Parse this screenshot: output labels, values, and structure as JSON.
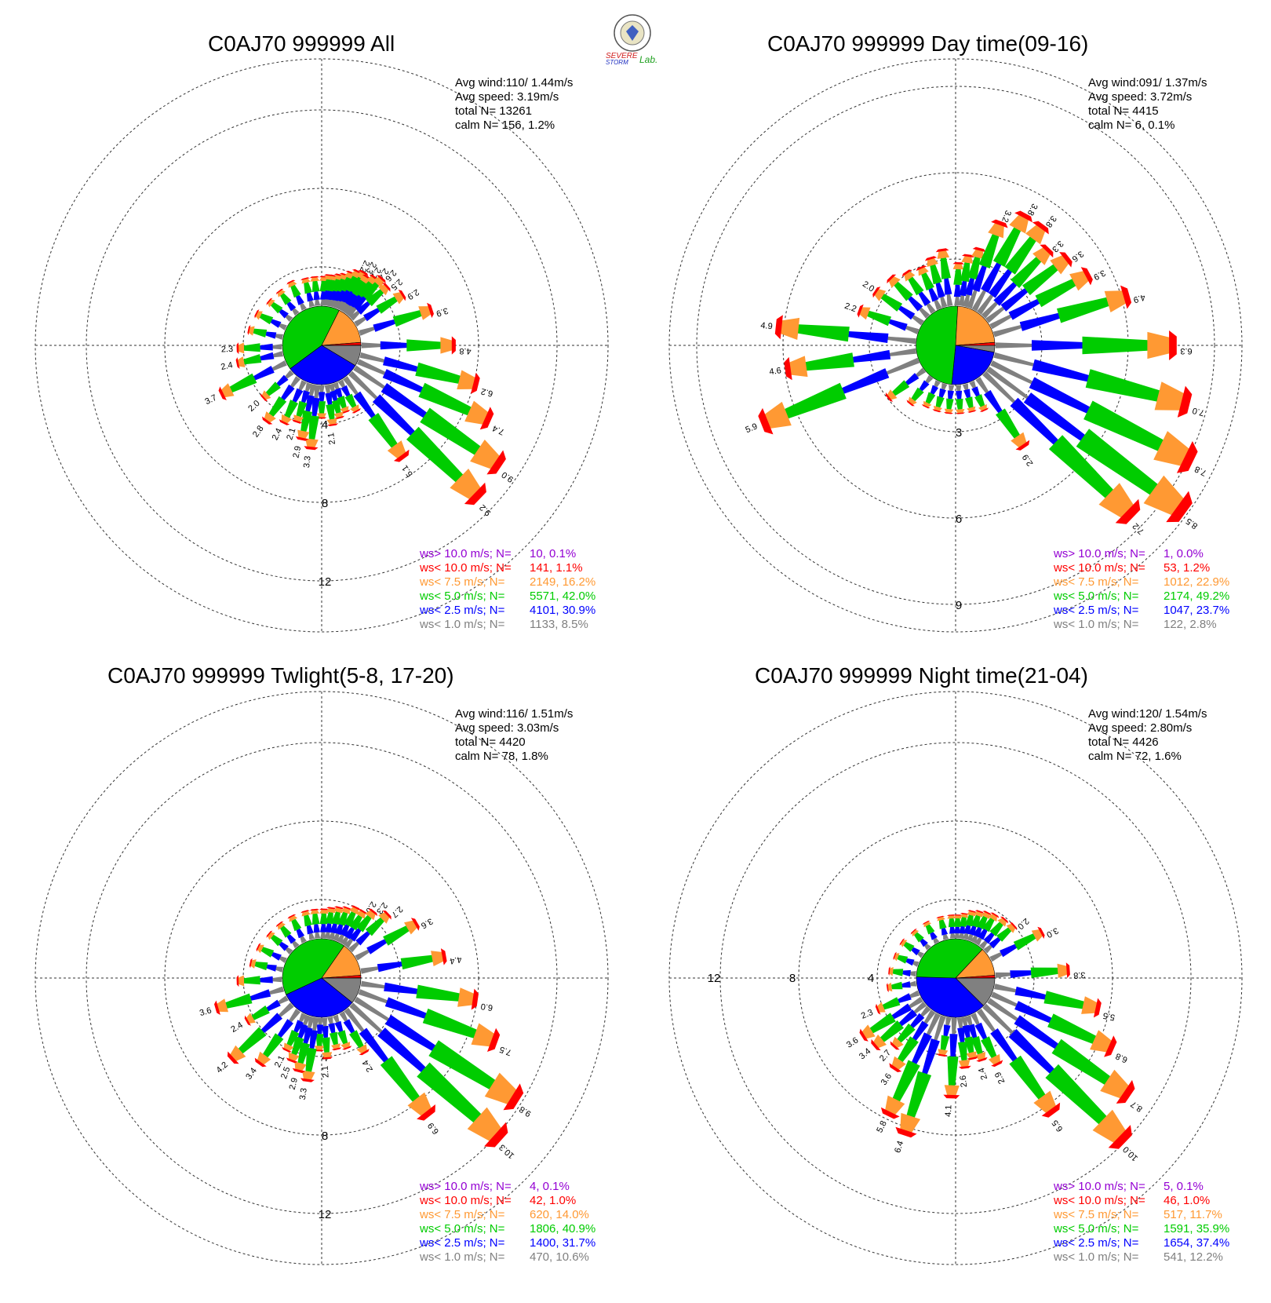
{
  "logo": {
    "text_a": "SEVERE",
    "text_b": "STORM",
    "text_c": "Lab."
  },
  "colors": {
    "gt10": "#9400d3",
    "lt10": "#ff0000",
    "lt75": "#ff9933",
    "lt5": "#00cc00",
    "lt25": "#0000ff",
    "lt1": "#808080"
  },
  "legend_labels": [
    "ws> 10.0 m/s; N=",
    "ws< 10.0 m/s; N=",
    "ws<  7.5 m/s; N=",
    "ws<  5.0 m/s; N=",
    "ws<  2.5 m/s; N=",
    "ws<  1.0 m/s; N="
  ],
  "chart_data": [
    {
      "type": "windrose",
      "title": "C0AJ70 999999 All",
      "stats": {
        "avg_wind": "Avg wind:110/ 1.44m/s",
        "avg_speed": "Avg speed: 3.19m/s",
        "total": "total N=       13261",
        "calm": "calm N=   156,   1.2%"
      },
      "ring_labels": [
        "4",
        "8",
        "12"
      ],
      "ring_values": [
        4,
        8,
        12
      ],
      "legend_values": [
        "  10,  0.1%",
        " 141,  1.1%",
        "2149, 16.2%",
        "5571, 42.0%",
        "4101, 30.9%",
        "1133,  8.5%"
      ],
      "pie_percent": [
        8.5,
        30.9,
        42.0,
        16.2,
        1.1,
        0.1
      ],
      "directions": [
        {
          "dir": 2,
          "total": 1.5
        },
        {
          "dir": 6,
          "total": 1.6
        },
        {
          "dir": 10,
          "total": 1.6
        },
        {
          "dir": 14,
          "total": 1.7
        },
        {
          "dir": 18,
          "total": 1.8
        },
        {
          "dir": 22,
          "total": 2.0
        },
        {
          "dir": 26,
          "total": 2.2,
          "label": "2.2"
        },
        {
          "dir": 30,
          "total": 2.3,
          "label": "2.3"
        },
        {
          "dir": 34,
          "total": 2.2,
          "label": "2.2"
        },
        {
          "dir": 38,
          "total": 2.4,
          "label": "2.4"
        },
        {
          "dir": 42,
          "total": 2.6,
          "label": "2.6"
        },
        {
          "dir": 48,
          "total": 2.5,
          "label": "2.5"
        },
        {
          "dir": 58,
          "total": 2.9,
          "label": "2.9"
        },
        {
          "dir": 72,
          "total": 3.9,
          "label": "3.9"
        },
        {
          "dir": 90,
          "total": 4.8,
          "label": "4.8"
        },
        {
          "dir": 104,
          "total": 6.2,
          "label": "6.2"
        },
        {
          "dir": 114,
          "total": 7.4,
          "label": "7.4"
        },
        {
          "dir": 124,
          "total": 9.0,
          "label": "9.0"
        },
        {
          "dir": 134,
          "total": 9.2,
          "label": "9.2"
        },
        {
          "dir": 144,
          "total": 5.1,
          "label": "5.1"
        },
        {
          "dir": 152,
          "total": 1.8
        },
        {
          "dir": 160,
          "total": 1.6
        },
        {
          "dir": 166,
          "total": 1.8
        },
        {
          "dir": 172,
          "total": 2.1,
          "label": "2.1"
        },
        {
          "dir": 180,
          "total": 1.7
        },
        {
          "dir": 186,
          "total": 3.3,
          "label": "3.3"
        },
        {
          "dir": 192,
          "total": 2.9,
          "label": "2.9"
        },
        {
          "dir": 198,
          "total": 2.1,
          "label": "2.1"
        },
        {
          "dir": 206,
          "total": 2.4,
          "label": "2.4"
        },
        {
          "dir": 216,
          "total": 2.8,
          "label": "2.8"
        },
        {
          "dir": 228,
          "total": 2.0,
          "label": "2.0"
        },
        {
          "dir": 244,
          "total": 3.7,
          "label": "3.7"
        },
        {
          "dir": 258,
          "total": 2.4,
          "label": "2.4"
        },
        {
          "dir": 268,
          "total": 2.3,
          "label": "2.3"
        },
        {
          "dir": 282,
          "total": 1.8
        },
        {
          "dir": 296,
          "total": 1.7
        },
        {
          "dir": 310,
          "total": 1.5
        },
        {
          "dir": 322,
          "total": 1.5
        },
        {
          "dir": 334,
          "total": 1.6
        },
        {
          "dir": 346,
          "total": 1.5
        },
        {
          "dir": 354,
          "total": 1.5
        }
      ]
    },
    {
      "type": "windrose",
      "title": "C0AJ70 999999 Day time(09-16)",
      "stats": {
        "avg_wind": "Avg wind:091/ 1.37m/s",
        "avg_speed": "Avg speed: 3.72m/s",
        "total": "total N=        4415",
        "calm": "calm N=     6,   0.1%"
      },
      "ring_labels": [
        "3",
        "6",
        "9"
      ],
      "ring_values": [
        3,
        6,
        9
      ],
      "legend_values": [
        "   1,  0.0%",
        "  53,  1.2%",
        "1012, 22.9%",
        "2174, 49.2%",
        "1047, 23.7%",
        " 122,  2.8%"
      ],
      "pie_percent": [
        2.8,
        23.7,
        49.2,
        22.9,
        1.2,
        0.0
      ],
      "directions": [
        {
          "dir": 2,
          "total": 1.5
        },
        {
          "dir": 8,
          "total": 1.8
        },
        {
          "dir": 14,
          "total": 2.1
        },
        {
          "dir": 20,
          "total": 3.2,
          "label": "3.2"
        },
        {
          "dir": 28,
          "total": 3.8,
          "label": "3.8"
        },
        {
          "dir": 36,
          "total": 3.8,
          "label": "3.8"
        },
        {
          "dir": 44,
          "total": 3.3,
          "label": "3.3"
        },
        {
          "dir": 52,
          "total": 3.6,
          "label": "3.6"
        },
        {
          "dir": 62,
          "total": 3.9,
          "label": "3.9"
        },
        {
          "dir": 74,
          "total": 4.9,
          "label": "4.9"
        },
        {
          "dir": 90,
          "total": 6.3,
          "label": "6.3"
        },
        {
          "dir": 104,
          "total": 7.0,
          "label": "7.0"
        },
        {
          "dir": 116,
          "total": 7.8,
          "label": "7.8"
        },
        {
          "dir": 126,
          "total": 8.5,
          "label": "8.5"
        },
        {
          "dir": 134,
          "total": 7.2,
          "label": "7.2"
        },
        {
          "dir": 146,
          "total": 2.9,
          "label": "2.9"
        },
        {
          "dir": 156,
          "total": 1.1
        },
        {
          "dir": 166,
          "total": 1.0
        },
        {
          "dir": 176,
          "total": 1.0
        },
        {
          "dir": 186,
          "total": 1.0
        },
        {
          "dir": 196,
          "total": 1.0
        },
        {
          "dir": 206,
          "total": 1.0
        },
        {
          "dir": 218,
          "total": 1.2
        },
        {
          "dir": 232,
          "total": 1.6
        },
        {
          "dir": 248,
          "total": 5.9,
          "label": "5.9"
        },
        {
          "dir": 262,
          "total": 4.6,
          "label": "4.6"
        },
        {
          "dir": 276,
          "total": 4.9,
          "label": "4.9"
        },
        {
          "dir": 290,
          "total": 2.2,
          "label": "2.2"
        },
        {
          "dir": 304,
          "total": 2.0,
          "label": "2.0"
        },
        {
          "dir": 316,
          "total": 1.9
        },
        {
          "dir": 326,
          "total": 1.7
        },
        {
          "dir": 336,
          "total": 1.6
        },
        {
          "dir": 344,
          "total": 1.8
        },
        {
          "dir": 352,
          "total": 2.0
        }
      ]
    },
    {
      "type": "windrose",
      "title": "C0AJ70 999999 Twlight(5-8, 17-20)",
      "stats": {
        "avg_wind": "Avg wind:116/ 1.51m/s",
        "avg_speed": "Avg speed: 3.03m/s",
        "total": "total N=        4420",
        "calm": "calm N=    78,   1.8%"
      },
      "ring_labels": [
        "4",
        "8",
        "12"
      ],
      "ring_values": [
        4,
        8,
        12
      ],
      "legend_values": [
        "   4,  0.1%",
        "  42,  1.0%",
        " 620, 14.0%",
        "1806, 40.9%",
        "1400, 31.7%",
        " 470, 10.6%"
      ],
      "pie_percent": [
        10.6,
        31.7,
        40.9,
        14.0,
        1.0,
        0.1
      ],
      "directions": [
        {
          "dir": 2,
          "total": 1.5
        },
        {
          "dir": 8,
          "total": 1.6
        },
        {
          "dir": 14,
          "total": 1.7
        },
        {
          "dir": 20,
          "total": 1.8
        },
        {
          "dir": 26,
          "total": 2.0
        },
        {
          "dir": 32,
          "total": 2.0,
          "label": "2.0"
        },
        {
          "dir": 38,
          "total": 2.3,
          "label": "2.3"
        },
        {
          "dir": 46,
          "total": 2.7,
          "label": "2.7"
        },
        {
          "dir": 60,
          "total": 3.6,
          "label": "3.6"
        },
        {
          "dir": 80,
          "total": 4.4,
          "label": "4.4"
        },
        {
          "dir": 98,
          "total": 6.0,
          "label": "6.0"
        },
        {
          "dir": 110,
          "total": 7.5,
          "label": "7.5"
        },
        {
          "dir": 122,
          "total": 9.8,
          "label": "9.8"
        },
        {
          "dir": 132,
          "total": 10.3,
          "label": "10.3"
        },
        {
          "dir": 142,
          "total": 6.9,
          "label": "6.9"
        },
        {
          "dir": 150,
          "total": 2.4,
          "label": "2.4"
        },
        {
          "dir": 160,
          "total": 1.8
        },
        {
          "dir": 168,
          "total": 1.7
        },
        {
          "dir": 176,
          "total": 2.1,
          "label": "2.1"
        },
        {
          "dir": 182,
          "total": 1.7
        },
        {
          "dir": 188,
          "total": 3.3,
          "label": "3.3"
        },
        {
          "dir": 194,
          "total": 2.9,
          "label": "2.9"
        },
        {
          "dir": 200,
          "total": 2.5,
          "label": "2.5"
        },
        {
          "dir": 206,
          "total": 2.1,
          "label": "2.1"
        },
        {
          "dir": 216,
          "total": 3.4,
          "label": "3.4"
        },
        {
          "dir": 228,
          "total": 4.2,
          "label": "4.2"
        },
        {
          "dir": 240,
          "total": 2.4,
          "label": "2.4"
        },
        {
          "dir": 254,
          "total": 3.6,
          "label": "3.6"
        },
        {
          "dir": 268,
          "total": 2.3
        },
        {
          "dir": 282,
          "total": 1.7
        },
        {
          "dir": 296,
          "total": 1.6
        },
        {
          "dir": 310,
          "total": 1.5
        },
        {
          "dir": 322,
          "total": 1.5
        },
        {
          "dir": 334,
          "total": 1.5
        },
        {
          "dir": 346,
          "total": 1.5
        },
        {
          "dir": 354,
          "total": 1.5
        }
      ]
    },
    {
      "type": "windrose",
      "title": "C0AJ70 999999 Night time(21-04)",
      "stats": {
        "avg_wind": "Avg wind:120/ 1.54m/s",
        "avg_speed": "Avg speed: 2.80m/s",
        "total": "total N=        4426",
        "calm": "calm N=    72,   1.6%"
      },
      "ring_labels": [
        "4",
        "8",
        "12"
      ],
      "ring_values": [
        4,
        8,
        12
      ],
      "legend_values": [
        "   5,  0.1%",
        "  46,  1.0%",
        " 517, 11.7%",
        "1591, 35.9%",
        "1654, 37.4%",
        " 541, 12.2%"
      ],
      "pie_percent": [
        12.2,
        37.4,
        35.9,
        11.7,
        1.0,
        0.1
      ],
      "directions": [
        {
          "dir": 2,
          "total": 1.2
        },
        {
          "dir": 8,
          "total": 1.3
        },
        {
          "dir": 14,
          "total": 1.5
        },
        {
          "dir": 20,
          "total": 1.6
        },
        {
          "dir": 26,
          "total": 1.7
        },
        {
          "dir": 32,
          "total": 1.8
        },
        {
          "dir": 40,
          "total": 1.9
        },
        {
          "dir": 48,
          "total": 2.0,
          "label": "2.0"
        },
        {
          "dir": 62,
          "total": 3.0,
          "label": "3.0"
        },
        {
          "dir": 86,
          "total": 3.8,
          "label": "3.8"
        },
        {
          "dir": 102,
          "total": 5.5,
          "label": "5.5"
        },
        {
          "dir": 114,
          "total": 6.8,
          "label": "6.8"
        },
        {
          "dir": 124,
          "total": 8.7,
          "label": "8.7"
        },
        {
          "dir": 134,
          "total": 10.0,
          "label": "10.0"
        },
        {
          "dir": 144,
          "total": 6.5,
          "label": "6.5"
        },
        {
          "dir": 154,
          "total": 2.9,
          "label": "2.9"
        },
        {
          "dir": 162,
          "total": 2.4,
          "label": "2.4"
        },
        {
          "dir": 168,
          "total": 2.2
        },
        {
          "dir": 174,
          "total": 2.6,
          "label": "2.6"
        },
        {
          "dir": 182,
          "total": 4.1,
          "label": "4.1"
        },
        {
          "dir": 190,
          "total": 2.0
        },
        {
          "dir": 198,
          "total": 6.4,
          "label": "6.4"
        },
        {
          "dir": 206,
          "total": 5.8,
          "label": "5.8"
        },
        {
          "dir": 214,
          "total": 3.6,
          "label": "3.6"
        },
        {
          "dir": 222,
          "total": 2.7,
          "label": "2.7"
        },
        {
          "dir": 230,
          "total": 3.4,
          "label": "3.4"
        },
        {
          "dir": 238,
          "total": 3.6,
          "label": "3.6"
        },
        {
          "dir": 248,
          "total": 2.3,
          "label": "2.3"
        },
        {
          "dir": 262,
          "total": 1.5
        },
        {
          "dir": 276,
          "total": 1.4
        },
        {
          "dir": 290,
          "total": 1.3
        },
        {
          "dir": 304,
          "total": 1.3
        },
        {
          "dir": 318,
          "total": 1.2
        },
        {
          "dir": 332,
          "total": 1.2
        },
        {
          "dir": 346,
          "total": 1.2
        },
        {
          "dir": 356,
          "total": 1.2
        }
      ]
    }
  ]
}
